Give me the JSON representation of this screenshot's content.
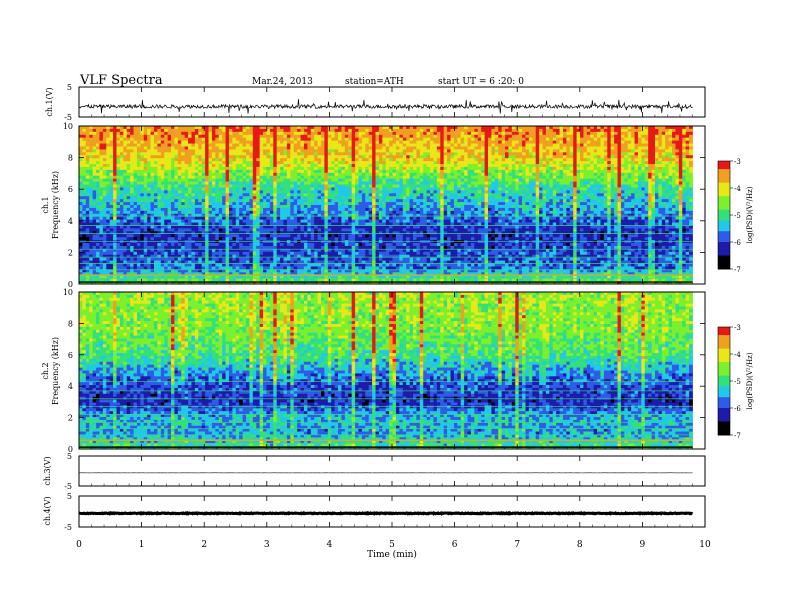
{
  "header": {
    "title": "VLF  Spectra",
    "date": "Mar.24, 2013",
    "station": "station=ATH",
    "start": "start  UT =   6  :20: 0"
  },
  "colors": {
    "spectrum": [
      "#000000",
      "#1c1ca8",
      "#2e5ce8",
      "#22c8e8",
      "#34e07a",
      "#7cf02c",
      "#e8e818",
      "#f0a020",
      "#e81818",
      "#ffffff"
    ]
  },
  "chart_data": [
    {
      "type": "line",
      "panel": "ch1-waveform",
      "ylabel": "ch.1(V)",
      "ylim": [
        -5,
        5
      ],
      "ytick_labels": [
        "5",
        "-5"
      ],
      "xlim": [
        0,
        10
      ],
      "note_values": "dense noisy waveform centered near -1.5 V with spikes to about -3.5 V and +1 V, data ends at ~9.8 min"
    },
    {
      "type": "heatmap",
      "panel": "ch1-spectrogram",
      "ylabel_top": "ch.1",
      "ylabel": "Frequency  (kHz)",
      "ylim": [
        0,
        10
      ],
      "ytick_labels": [
        "0",
        "2",
        "4",
        "6",
        "8",
        "10"
      ],
      "xlim": [
        0,
        10
      ],
      "data_end_min": 9.8,
      "colorbar": {
        "label": "log(PSD)(V²/Hz)",
        "range": [
          -7,
          -3
        ],
        "tick_labels": [
          "-3",
          "-4",
          "-5",
          "-6",
          "-7"
        ]
      },
      "profile_freq_khz": [
        0,
        1,
        2,
        3,
        4,
        5,
        6,
        7,
        8,
        10
      ],
      "profile_logpsd": [
        -4.6,
        -5.8,
        -6.0,
        -6.2,
        -5.9,
        -5.5,
        -5.2,
        -4.6,
        -4.0,
        -3.5
      ]
    },
    {
      "type": "heatmap",
      "panel": "ch2-spectrogram",
      "ylabel_top": "ch.2",
      "ylabel": "Frequency  (kHz)",
      "ylim": [
        0,
        10
      ],
      "ytick_labels": [
        "0",
        "2",
        "4",
        "6",
        "8",
        "10"
      ],
      "xlim": [
        0,
        10
      ],
      "data_end_min": 9.8,
      "colorbar": {
        "label": "log(PSD)(V²/Hz)",
        "range": [
          -7,
          -3
        ],
        "tick_labels": [
          "-3",
          "-4",
          "-5",
          "-6",
          "-7"
        ]
      },
      "profile_freq_khz": [
        0,
        1,
        2,
        3,
        4,
        5,
        6,
        7,
        8,
        10
      ],
      "profile_logpsd": [
        -5.0,
        -5.6,
        -5.5,
        -6.2,
        -6.0,
        -5.6,
        -5.0,
        -4.8,
        -4.6,
        -4.5
      ]
    },
    {
      "type": "line",
      "panel": "ch3-waveform",
      "ylabel": "ch.3(V)",
      "ylim": [
        -5,
        5
      ],
      "ytick_labels": [
        "5",
        "-5"
      ],
      "xlim": [
        0,
        10
      ],
      "note_values": "flat trace near -0.5 V"
    },
    {
      "type": "line",
      "panel": "ch4-waveform",
      "ylabel": "ch.4(V)",
      "ylim": [
        -5,
        5
      ],
      "ytick_labels": [
        "5",
        "-5"
      ],
      "xlim": [
        0,
        10
      ],
      "note_values": "thick flat trace near -0.5 V"
    }
  ],
  "xaxis": {
    "label": "Time  (min)",
    "ticks": [
      0,
      1,
      2,
      3,
      4,
      5,
      6,
      7,
      8,
      9,
      10
    ],
    "tick_labels": [
      "0",
      "1",
      "2",
      "3",
      "4",
      "5",
      "6",
      "7",
      "8",
      "9",
      "10"
    ]
  }
}
